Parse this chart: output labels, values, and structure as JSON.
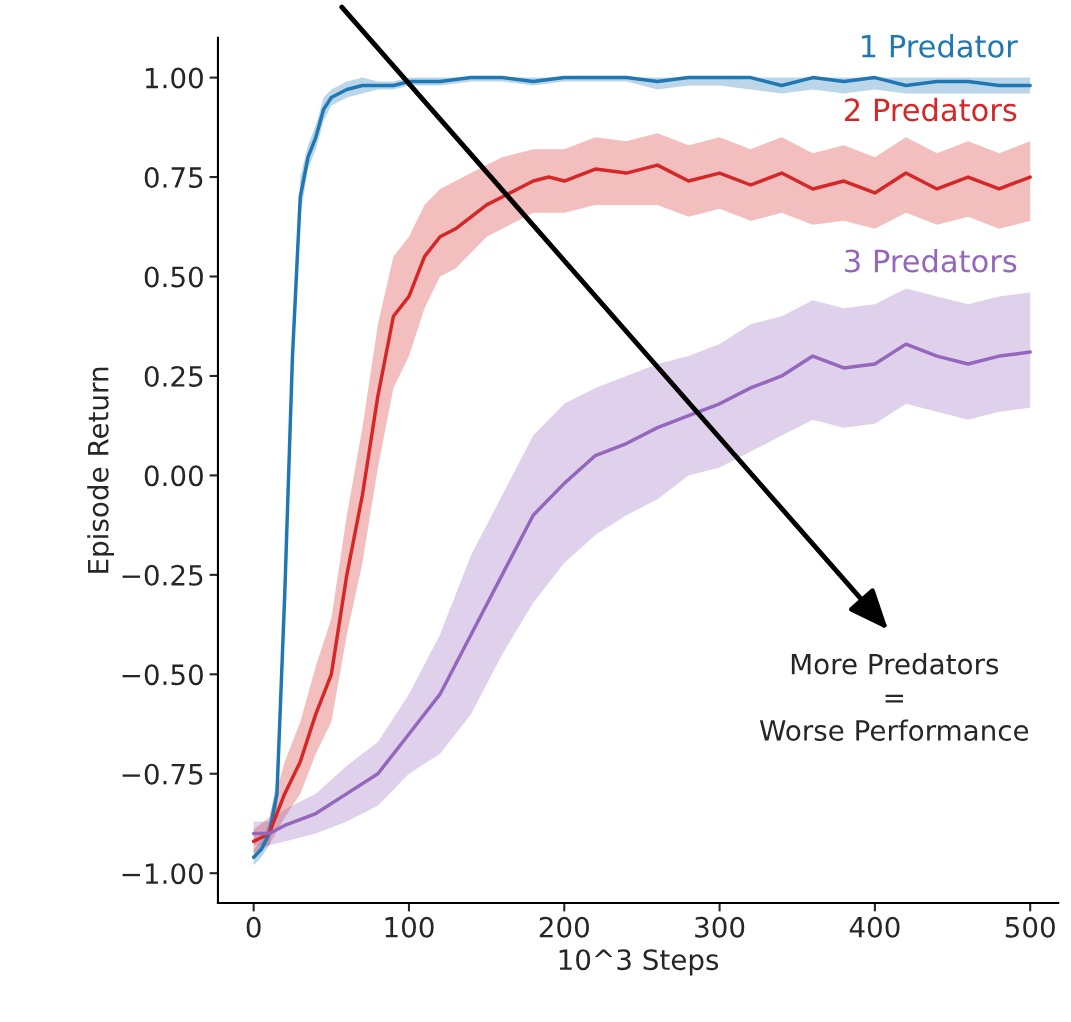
{
  "chart_data": {
    "type": "line",
    "xlabel": "10^3 Steps",
    "ylabel": "Episode Return",
    "xlim": [
      -23,
      518
    ],
    "ylim": [
      -1.075,
      1.1
    ],
    "xticks": [
      0,
      100,
      200,
      300,
      400,
      500
    ],
    "yticks": [
      {
        "value": -1.0,
        "label": "−1.00"
      },
      {
        "value": -0.75,
        "label": "−0.75"
      },
      {
        "value": -0.5,
        "label": "−0.50"
      },
      {
        "value": -0.25,
        "label": "−0.25"
      },
      {
        "value": 0.0,
        "label": "0.00"
      },
      {
        "value": 0.25,
        "label": "0.25"
      },
      {
        "value": 0.5,
        "label": "0.50"
      },
      {
        "value": 0.75,
        "label": "0.75"
      },
      {
        "value": 1.0,
        "label": "1.00"
      }
    ],
    "grid": false,
    "legend": false,
    "series": [
      {
        "name": "1 Predator",
        "color": "#1f77b4",
        "x": [
          0,
          5,
          10,
          15,
          20,
          25,
          30,
          35,
          40,
          45,
          50,
          60,
          70,
          80,
          90,
          100,
          120,
          140,
          160,
          180,
          200,
          220,
          240,
          260,
          280,
          300,
          320,
          340,
          360,
          380,
          400,
          420,
          440,
          460,
          480,
          500
        ],
        "values": [
          -0.96,
          -0.94,
          -0.9,
          -0.8,
          -0.3,
          0.3,
          0.7,
          0.8,
          0.85,
          0.92,
          0.95,
          0.97,
          0.98,
          0.98,
          0.98,
          0.99,
          0.99,
          1.0,
          1.0,
          0.99,
          1.0,
          1.0,
          1.0,
          0.99,
          1.0,
          1.0,
          1.0,
          0.98,
          1.0,
          0.99,
          1.0,
          0.98,
          0.99,
          0.99,
          0.98,
          0.98
        ],
        "lower": [
          -0.98,
          -0.96,
          -0.93,
          -0.84,
          -0.36,
          0.24,
          0.65,
          0.77,
          0.82,
          0.89,
          0.93,
          0.95,
          0.96,
          0.97,
          0.97,
          0.98,
          0.98,
          0.99,
          0.99,
          0.98,
          0.99,
          0.99,
          0.99,
          0.97,
          0.98,
          0.98,
          0.97,
          0.96,
          0.97,
          0.96,
          0.97,
          0.96,
          0.96,
          0.96,
          0.96,
          0.96
        ],
        "upper": [
          -0.94,
          -0.92,
          -0.87,
          -0.76,
          -0.24,
          0.36,
          0.75,
          0.83,
          0.88,
          0.95,
          0.97,
          0.99,
          1.0,
          0.99,
          0.99,
          1.0,
          1.0,
          1.0,
          1.0,
          1.0,
          1.0,
          1.0,
          1.0,
          1.0,
          1.0,
          1.0,
          1.0,
          1.0,
          1.0,
          1.0,
          1.0,
          1.0,
          1.0,
          1.0,
          1.0,
          1.0
        ]
      },
      {
        "name": "2 Predators",
        "color": "#d62728",
        "x": [
          0,
          10,
          20,
          30,
          40,
          50,
          60,
          70,
          80,
          90,
          100,
          110,
          120,
          130,
          140,
          150,
          160,
          170,
          180,
          190,
          200,
          220,
          240,
          260,
          280,
          300,
          320,
          340,
          360,
          380,
          400,
          420,
          440,
          460,
          480,
          500
        ],
        "values": [
          -0.92,
          -0.9,
          -0.8,
          -0.72,
          -0.6,
          -0.5,
          -0.25,
          -0.05,
          0.2,
          0.4,
          0.45,
          0.55,
          0.6,
          0.62,
          0.65,
          0.68,
          0.7,
          0.72,
          0.74,
          0.75,
          0.74,
          0.77,
          0.76,
          0.78,
          0.74,
          0.76,
          0.73,
          0.76,
          0.72,
          0.74,
          0.71,
          0.76,
          0.72,
          0.75,
          0.72,
          0.75
        ],
        "lower": [
          -0.95,
          -0.93,
          -0.86,
          -0.8,
          -0.7,
          -0.62,
          -0.4,
          -0.22,
          0.02,
          0.22,
          0.3,
          0.42,
          0.5,
          0.52,
          0.56,
          0.6,
          0.62,
          0.64,
          0.66,
          0.66,
          0.66,
          0.68,
          0.68,
          0.68,
          0.65,
          0.67,
          0.64,
          0.66,
          0.63,
          0.64,
          0.62,
          0.66,
          0.63,
          0.65,
          0.62,
          0.64
        ],
        "upper": [
          -0.89,
          -0.86,
          -0.72,
          -0.62,
          -0.48,
          -0.36,
          -0.1,
          0.12,
          0.38,
          0.55,
          0.6,
          0.68,
          0.72,
          0.74,
          0.76,
          0.78,
          0.8,
          0.81,
          0.82,
          0.82,
          0.82,
          0.85,
          0.84,
          0.86,
          0.83,
          0.85,
          0.82,
          0.85,
          0.81,
          0.83,
          0.8,
          0.85,
          0.81,
          0.84,
          0.81,
          0.84
        ]
      },
      {
        "name": "3 Predators",
        "color": "#9467bd",
        "x": [
          0,
          10,
          20,
          40,
          60,
          80,
          100,
          120,
          140,
          160,
          180,
          200,
          220,
          240,
          260,
          280,
          300,
          320,
          340,
          360,
          380,
          400,
          420,
          440,
          460,
          480,
          500
        ],
        "values": [
          -0.9,
          -0.9,
          -0.88,
          -0.85,
          -0.8,
          -0.75,
          -0.65,
          -0.55,
          -0.4,
          -0.25,
          -0.1,
          -0.02,
          0.05,
          0.08,
          0.12,
          0.15,
          0.18,
          0.22,
          0.25,
          0.3,
          0.27,
          0.28,
          0.33,
          0.3,
          0.28,
          0.3,
          0.31
        ],
        "lower": [
          -0.93,
          -0.93,
          -0.92,
          -0.9,
          -0.87,
          -0.83,
          -0.75,
          -0.7,
          -0.6,
          -0.45,
          -0.32,
          -0.22,
          -0.15,
          -0.1,
          -0.06,
          0.0,
          0.02,
          0.06,
          0.1,
          0.14,
          0.12,
          0.13,
          0.18,
          0.16,
          0.14,
          0.16,
          0.17
        ],
        "upper": [
          -0.87,
          -0.87,
          -0.84,
          -0.8,
          -0.73,
          -0.67,
          -0.55,
          -0.4,
          -0.2,
          -0.05,
          0.1,
          0.18,
          0.22,
          0.25,
          0.28,
          0.3,
          0.33,
          0.38,
          0.4,
          0.44,
          0.42,
          0.43,
          0.47,
          0.45,
          0.43,
          0.45,
          0.46
        ]
      }
    ],
    "annotations": [
      "More Predators\n=\nWorse Performance"
    ]
  }
}
